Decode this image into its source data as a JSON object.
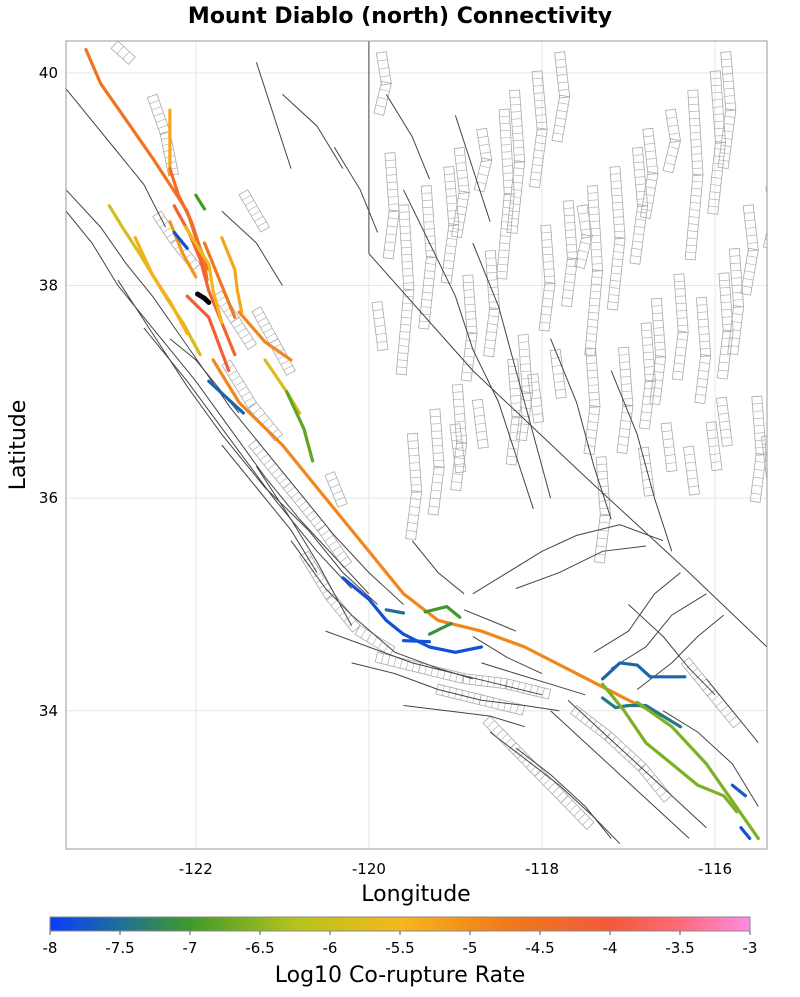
{
  "title": "Mount Diablo (north) Connectivity",
  "xlabel": "Longitude",
  "ylabel": "Latitude",
  "colorbar": {
    "label": "Log10 Co-rupture Rate",
    "min": -8,
    "max": -3,
    "ticks": [
      "-8",
      "-7.5",
      "-7",
      "-6.5",
      "-6",
      "-5.5",
      "-5",
      "-4.5",
      "-4",
      "-3.5",
      "-3"
    ],
    "colors": [
      "#0a3cff",
      "#1f6f9a",
      "#3f9a2a",
      "#b4c31c",
      "#f6b81c",
      "#f07a1c",
      "#f25a3a",
      "#ff6a78",
      "#ff8ae6"
    ]
  },
  "axes": {
    "xlim": [
      -123.5,
      -115.4
    ],
    "ylim": [
      32.7,
      40.3
    ],
    "xticks": [
      {
        "value": -122,
        "label": "-122"
      },
      {
        "value": -120,
        "label": "-120"
      },
      {
        "value": -118,
        "label": "-118"
      },
      {
        "value": -116,
        "label": "-116"
      }
    ],
    "yticks": [
      {
        "value": 34,
        "label": "34"
      },
      {
        "value": 36,
        "label": "36"
      },
      {
        "value": 38,
        "label": "38"
      },
      {
        "value": 40,
        "label": "40"
      }
    ],
    "grid": true
  },
  "styles": {
    "fault_trace": "#444444",
    "fault_surface": "#aaaaaa",
    "source_section": "#000000",
    "frame": "#999999",
    "grid": "#e6e6e6"
  },
  "source_fault": {
    "points": [
      [
        -121.98,
        37.92
      ],
      [
        -121.9,
        37.88
      ],
      [
        -121.85,
        37.84
      ]
    ]
  },
  "colored_faults": [
    {
      "rate": -4.6,
      "points": [
        [
          -123.27,
          40.22
        ],
        [
          -123.1,
          39.9
        ],
        [
          -122.8,
          39.55
        ],
        [
          -122.5,
          39.2
        ],
        [
          -122.3,
          38.95
        ],
        [
          -122.1,
          38.7
        ],
        [
          -122.0,
          38.45
        ],
        [
          -121.9,
          38.2
        ],
        [
          -121.87,
          38.05
        ]
      ]
    },
    {
      "rate": -5.3,
      "points": [
        [
          -122.3,
          39.65
        ],
        [
          -122.3,
          39.3
        ],
        [
          -122.3,
          39.05
        ]
      ]
    },
    {
      "rate": -4.4,
      "points": [
        [
          -122.3,
          39.1
        ],
        [
          -122.2,
          38.85
        ],
        [
          -122.05,
          38.6
        ],
        [
          -121.95,
          38.35
        ],
        [
          -121.85,
          38.15
        ]
      ]
    },
    {
      "rate": -4.2,
      "points": [
        [
          -122.25,
          38.75
        ],
        [
          -122.08,
          38.5
        ],
        [
          -121.95,
          38.25
        ],
        [
          -121.85,
          37.95
        ],
        [
          -121.7,
          37.65
        ],
        [
          -121.55,
          37.35
        ]
      ]
    },
    {
      "rate": -5.6,
      "points": [
        [
          -122.12,
          38.55
        ],
        [
          -121.85,
          38.2
        ],
        [
          -121.8,
          37.95
        ],
        [
          -121.7,
          37.65
        ]
      ]
    },
    {
      "rate": -5.9,
      "points": [
        [
          -123.0,
          38.75
        ],
        [
          -122.85,
          38.55
        ],
        [
          -122.65,
          38.3
        ],
        [
          -122.5,
          38.1
        ],
        [
          -122.35,
          37.9
        ],
        [
          -122.15,
          37.65
        ],
        [
          -121.95,
          37.35
        ]
      ]
    },
    {
      "rate": -5.4,
      "points": [
        [
          -122.7,
          38.45
        ],
        [
          -122.5,
          38.1
        ],
        [
          -122.3,
          37.85
        ],
        [
          -122.1,
          37.55
        ]
      ]
    },
    {
      "rate": -4.7,
      "points": [
        [
          -121.9,
          38.4
        ],
        [
          -121.7,
          38.0
        ],
        [
          -121.55,
          37.7
        ]
      ]
    },
    {
      "rate": -4.1,
      "points": [
        [
          -122.1,
          37.9
        ],
        [
          -121.85,
          37.7
        ],
        [
          -121.62,
          37.2
        ]
      ]
    },
    {
      "rate": -5.1,
      "points": [
        [
          -122.3,
          38.6
        ],
        [
          -122.15,
          38.3
        ],
        [
          -122.0,
          38.08
        ]
      ]
    },
    {
      "rate": -7.0,
      "points": [
        [
          -122.0,
          38.85
        ],
        [
          -121.9,
          38.72
        ]
      ]
    },
    {
      "rate": -5.3,
      "points": [
        [
          -121.7,
          38.45
        ],
        [
          -121.55,
          38.15
        ],
        [
          -121.52,
          37.95
        ],
        [
          -121.47,
          37.75
        ]
      ]
    },
    {
      "rate": -4.9,
      "points": [
        [
          -121.5,
          37.75
        ],
        [
          -121.2,
          37.47
        ],
        [
          -120.9,
          37.3
        ]
      ]
    },
    {
      "rate": -5.8,
      "points": [
        [
          -121.2,
          37.3
        ],
        [
          -120.95,
          37.0
        ],
        [
          -120.8,
          36.8
        ]
      ]
    },
    {
      "rate": -6.8,
      "points": [
        [
          -120.95,
          37.0
        ],
        [
          -120.75,
          36.65
        ],
        [
          -120.65,
          36.35
        ]
      ]
    },
    {
      "rate": -4.9,
      "points": [
        [
          -121.8,
          37.3
        ],
        [
          -121.5,
          36.9
        ],
        [
          -121.0,
          36.5
        ],
        [
          -120.5,
          36.0
        ],
        [
          -120.0,
          35.5
        ],
        [
          -119.6,
          35.1
        ],
        [
          -119.2,
          34.85
        ],
        [
          -118.7,
          34.75
        ],
        [
          -118.2,
          34.6
        ],
        [
          -117.6,
          34.35
        ],
        [
          -117.0,
          34.1
        ],
        [
          -116.6,
          33.95
        ]
      ]
    },
    {
      "rate": -7.8,
      "points": [
        [
          -122.25,
          38.5
        ],
        [
          -122.1,
          38.35
        ]
      ]
    },
    {
      "rate": -7.6,
      "points": [
        [
          -121.85,
          37.1
        ],
        [
          -121.65,
          36.95
        ],
        [
          -121.45,
          36.8
        ]
      ]
    },
    {
      "rate": -7.8,
      "points": [
        [
          -120.3,
          35.25
        ],
        [
          -120.0,
          35.05
        ],
        [
          -119.8,
          34.85
        ],
        [
          -119.6,
          34.72
        ],
        [
          -119.3,
          34.6
        ],
        [
          -119.0,
          34.55
        ],
        [
          -118.7,
          34.6
        ]
      ]
    },
    {
      "rate": -7.5,
      "points": [
        [
          -119.8,
          34.95
        ],
        [
          -119.6,
          34.92
        ]
      ]
    },
    {
      "rate": -7.0,
      "points": [
        [
          -119.35,
          34.93
        ],
        [
          -119.1,
          34.98
        ],
        [
          -118.95,
          34.88
        ]
      ]
    },
    {
      "rate": -7.1,
      "points": [
        [
          -119.3,
          34.72
        ],
        [
          -119.05,
          34.82
        ]
      ]
    },
    {
      "rate": -7.8,
      "points": [
        [
          -119.6,
          34.66
        ],
        [
          -119.3,
          34.65
        ]
      ]
    },
    {
      "rate": -7.6,
      "points": [
        [
          -117.3,
          34.3
        ],
        [
          -117.1,
          34.45
        ],
        [
          -116.9,
          34.43
        ],
        [
          -116.75,
          34.32
        ],
        [
          -116.35,
          34.32
        ]
      ]
    },
    {
      "rate": -7.4,
      "points": [
        [
          -117.3,
          34.12
        ],
        [
          -117.15,
          34.03
        ],
        [
          -117.0,
          34.05
        ],
        [
          -116.8,
          34.05
        ],
        [
          -116.6,
          33.95
        ],
        [
          -116.4,
          33.85
        ]
      ]
    },
    {
      "rate": -6.6,
      "points": [
        [
          -117.3,
          34.25
        ],
        [
          -117.05,
          34.0
        ],
        [
          -116.8,
          33.7
        ],
        [
          -116.5,
          33.5
        ],
        [
          -116.2,
          33.3
        ],
        [
          -115.9,
          33.2
        ],
        [
          -115.75,
          33.05
        ]
      ]
    },
    {
      "rate": -6.6,
      "points": [
        [
          -116.9,
          34.08
        ],
        [
          -116.5,
          33.85
        ],
        [
          -116.1,
          33.5
        ],
        [
          -115.8,
          33.15
        ],
        [
          -115.5,
          32.8
        ]
      ]
    },
    {
      "rate": -7.7,
      "points": [
        [
          -115.8,
          33.3
        ],
        [
          -115.65,
          33.2
        ]
      ]
    },
    {
      "rate": -7.8,
      "points": [
        [
          -115.7,
          32.9
        ],
        [
          -115.6,
          32.8
        ]
      ]
    }
  ]
}
